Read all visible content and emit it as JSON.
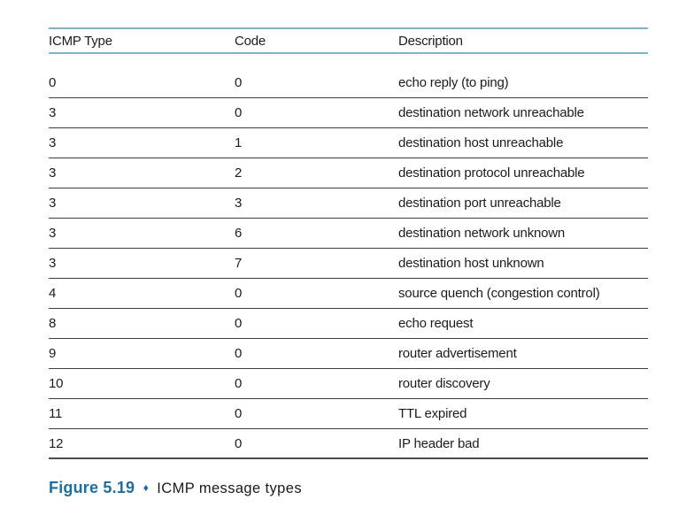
{
  "table": {
    "columns": [
      "ICMP Type",
      "Code",
      "Description"
    ],
    "rows": [
      {
        "type": "0",
        "code": "0",
        "description": "echo reply (to ping)"
      },
      {
        "type": "3",
        "code": "0",
        "description": "destination network unreachable"
      },
      {
        "type": "3",
        "code": "1",
        "description": "destination host unreachable"
      },
      {
        "type": "3",
        "code": "2",
        "description": "destination protocol unreachable"
      },
      {
        "type": "3",
        "code": "3",
        "description": "destination port unreachable"
      },
      {
        "type": "3",
        "code": "6",
        "description": "destination network unknown"
      },
      {
        "type": "3",
        "code": "7",
        "description": "destination host unknown"
      },
      {
        "type": "4",
        "code": "0",
        "description": "source quench (congestion control)"
      },
      {
        "type": "8",
        "code": "0",
        "description": "echo request"
      },
      {
        "type": "9",
        "code": "0",
        "description": "router advertisement"
      },
      {
        "type": "10",
        "code": "0",
        "description": "router discovery"
      },
      {
        "type": "11",
        "code": "0",
        "description": "TTL expired"
      },
      {
        "type": "12",
        "code": "0",
        "description": "IP header bad"
      }
    ]
  },
  "caption": {
    "label": "Figure 5.19",
    "separator": "♦",
    "title": "ICMP message types"
  },
  "colors": {
    "header_rule_teal": "#7cb4c8",
    "row_rule_dark": "#3e3e3e",
    "caption_blue": "#1b6f9e",
    "text": "#1c1c1c"
  }
}
